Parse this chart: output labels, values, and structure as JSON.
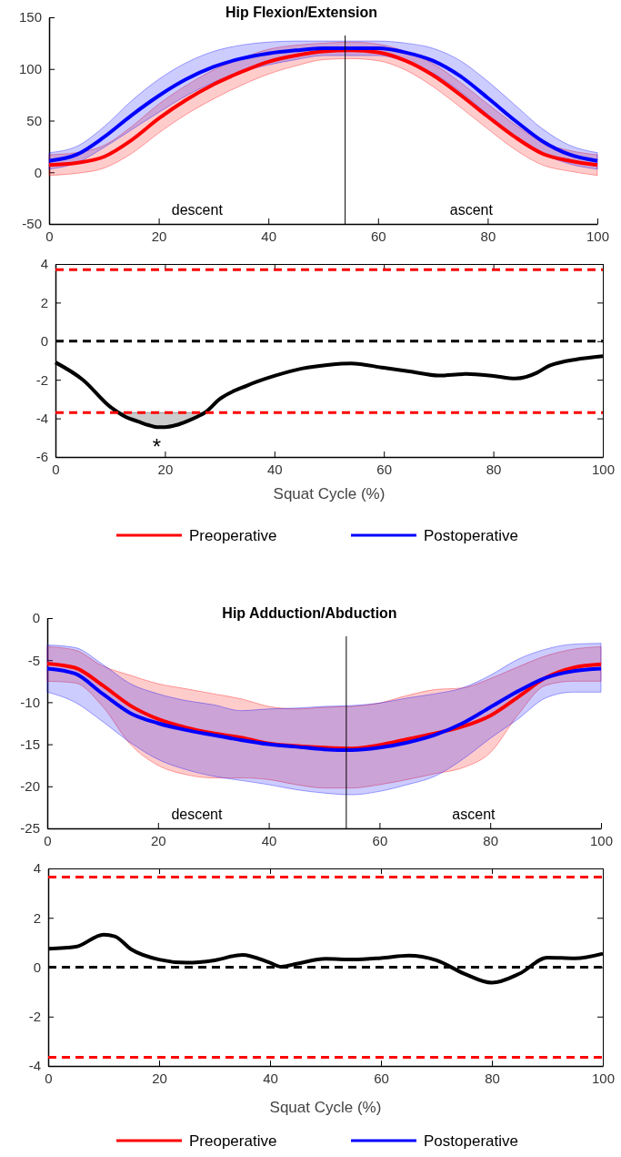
{
  "chart_data": [
    {
      "type": "line",
      "title": "Hip Flexion/Extension",
      "x": [
        0,
        5,
        10,
        15,
        20,
        25,
        30,
        35,
        40,
        45,
        50,
        55,
        60,
        65,
        70,
        75,
        80,
        85,
        90,
        95,
        100
      ],
      "xlim": [
        0,
        100
      ],
      "xticks": [
        0,
        20,
        40,
        60,
        80,
        100
      ],
      "ylim": [
        -50,
        150
      ],
      "yticks": [
        -50,
        0,
        50,
        100,
        150
      ],
      "legend": "bottom",
      "series": [
        {
          "name": "Preoperative",
          "color": "#ff0000",
          "values": [
            7,
            9,
            15,
            31,
            52,
            70,
            85,
            97,
            107,
            113,
            117,
            118,
            116,
            108,
            94,
            75,
            54,
            34,
            18,
            11,
            7
          ],
          "lower": [
            -3,
            -1,
            4,
            18,
            38,
            56,
            71,
            84,
            95,
            103,
            109,
            110,
            108,
            99,
            83,
            63,
            42,
            22,
            7,
            1,
            -3
          ],
          "upper": [
            17,
            19,
            26,
            44,
            66,
            84,
            99,
            110,
            119,
            123,
            125,
            126,
            124,
            117,
            105,
            87,
            66,
            46,
            29,
            21,
            17
          ]
        },
        {
          "name": "Postoperative",
          "color": "#0000ff",
          "values": [
            11,
            17,
            34,
            55,
            74,
            90,
            102,
            110,
            115,
            118,
            120,
            120,
            120,
            116,
            108,
            93,
            72,
            50,
            30,
            17,
            11
          ],
          "lower": [
            3,
            9,
            24,
            41,
            58,
            74,
            87,
            97,
            104,
            109,
            113,
            113,
            113,
            107,
            96,
            78,
            56,
            35,
            18,
            8,
            3
          ],
          "upper": [
            19,
            25,
            44,
            69,
            90,
            106,
            117,
            123,
            126,
            127,
            127,
            127,
            127,
            125,
            120,
            108,
            88,
            65,
            42,
            26,
            19
          ]
        }
      ],
      "ref_lines": [
        {
          "axis": "x",
          "value": 54,
          "color": "#000000"
        }
      ],
      "annotations": [
        "descent",
        "ascent"
      ]
    },
    {
      "type": "line",
      "xlabel": "Squat Cycle (%)",
      "xlim": [
        0,
        100
      ],
      "xticks": [
        0,
        20,
        40,
        60,
        80,
        100
      ],
      "ylim": [
        -6,
        4
      ],
      "yticks": [
        -6,
        -4,
        -2,
        0,
        2,
        4
      ],
      "series": [
        {
          "color": "#000000",
          "x": [
            0,
            5,
            10,
            11.5,
            13,
            15,
            17,
            18.5,
            20,
            22,
            24,
            26,
            27.3,
            30,
            35,
            40,
            45,
            50,
            54,
            60,
            65,
            70,
            75,
            80,
            84,
            88,
            90,
            93,
            95,
            100
          ],
          "values": [
            -1.1,
            -2.0,
            -3.4,
            -3.7,
            -3.95,
            -4.15,
            -4.35,
            -4.45,
            -4.45,
            -4.35,
            -4.15,
            -3.9,
            -3.7,
            -3.0,
            -2.3,
            -1.8,
            -1.42,
            -1.22,
            -1.15,
            -1.38,
            -1.58,
            -1.78,
            -1.7,
            -1.8,
            -1.93,
            -1.63,
            -1.3,
            -1.05,
            -0.95,
            -0.78
          ],
          "lower": [
            null,
            null,
            null,
            -3.7,
            -3.95,
            -4.15,
            -4.35,
            -4.45,
            -4.45,
            -4.35,
            -4.15,
            -3.9,
            -3.7,
            null,
            null,
            null,
            null,
            null,
            null,
            null,
            null,
            null,
            null,
            null,
            null,
            null,
            null,
            null,
            null,
            null
          ],
          "upper": [
            null,
            null,
            null,
            -3.7,
            -3.7,
            -3.7,
            -3.7,
            -3.7,
            -3.7,
            -3.7,
            -3.7,
            -3.7,
            -3.7,
            null,
            null,
            null,
            null,
            null,
            null,
            null,
            null,
            null,
            null,
            null,
            null,
            null,
            null,
            null,
            null,
            null
          ]
        }
      ],
      "ref_lines": [
        {
          "axis": "y",
          "value": 3.7,
          "color": "#ff0000",
          "line_style": "dashed"
        },
        {
          "axis": "y",
          "value": 0,
          "color": "#000000",
          "line_style": "dashed"
        },
        {
          "axis": "y",
          "value": -3.7,
          "color": "#ff0000",
          "line_style": "dashed"
        }
      ],
      "annotations": [
        "*"
      ]
    },
    {
      "type": "line",
      "title": "Hip Adduction/Abduction",
      "x": [
        0,
        5,
        10,
        15,
        20,
        25,
        30,
        35,
        40,
        45,
        50,
        55,
        60,
        65,
        70,
        75,
        80,
        85,
        90,
        95,
        100
      ],
      "xlim": [
        0,
        100
      ],
      "xticks": [
        0,
        20,
        40,
        60,
        80,
        100
      ],
      "ylim": [
        -25,
        0
      ],
      "yticks": [
        -25,
        -20,
        -15,
        -10,
        -5,
        0
      ],
      "legend": "bottom",
      "series": [
        {
          "name": "Preoperative",
          "color": "#ff0000",
          "values": [
            -5.4,
            -5.9,
            -8.0,
            -10.4,
            -12.0,
            -13.0,
            -13.7,
            -14.2,
            -14.9,
            -15.2,
            -15.4,
            -15.5,
            -15.1,
            -14.4,
            -13.7,
            -12.9,
            -11.6,
            -9.4,
            -7.1,
            -5.9,
            -5.5
          ],
          "lower": [
            -7.5,
            -7.7,
            -10.5,
            -15.0,
            -17.5,
            -18.6,
            -19.0,
            -19.0,
            -19.2,
            -19.8,
            -20.2,
            -20.2,
            -19.8,
            -19.2,
            -18.5,
            -17.8,
            -16.0,
            -11.5,
            -8.0,
            -7.5,
            -7.5
          ],
          "upper": [
            -3.4,
            -3.8,
            -5.7,
            -6.8,
            -7.8,
            -8.4,
            -9.0,
            -9.6,
            -10.5,
            -10.8,
            -10.6,
            -10.5,
            -10.1,
            -9.2,
            -8.5,
            -8.3,
            -7.2,
            -5.8,
            -4.5,
            -3.7,
            -3.4
          ]
        },
        {
          "name": "Postoperative",
          "color": "#0000ff",
          "values": [
            -6.0,
            -6.6,
            -9.0,
            -11.3,
            -12.5,
            -13.3,
            -13.9,
            -14.5,
            -15.0,
            -15.3,
            -15.6,
            -15.7,
            -15.4,
            -14.8,
            -13.9,
            -12.5,
            -10.6,
            -8.7,
            -7.1,
            -6.3,
            -6.0
          ],
          "lower": [
            -8.8,
            -10.0,
            -12.3,
            -14.8,
            -16.8,
            -18.0,
            -18.8,
            -19.3,
            -19.8,
            -20.4,
            -20.8,
            -21.0,
            -20.6,
            -19.8,
            -18.8,
            -16.8,
            -14.3,
            -12.0,
            -9.5,
            -8.8,
            -8.8
          ],
          "upper": [
            -3.2,
            -3.5,
            -5.5,
            -7.8,
            -9.0,
            -9.8,
            -10.3,
            -11.0,
            -10.8,
            -10.7,
            -10.5,
            -10.4,
            -10.1,
            -9.5,
            -9.0,
            -8.3,
            -6.8,
            -4.9,
            -3.7,
            -3.1,
            -3.0
          ]
        }
      ],
      "ref_lines": [
        {
          "axis": "x",
          "value": 54,
          "color": "#000000"
        }
      ],
      "annotations": [
        "descent",
        "ascent"
      ]
    },
    {
      "type": "line",
      "xlabel": "Squat Cycle (%)",
      "xlim": [
        0,
        100
      ],
      "xticks": [
        0,
        20,
        40,
        60,
        80,
        100
      ],
      "ylim": [
        -4,
        4
      ],
      "yticks": [
        -4,
        -2,
        0,
        2,
        4
      ],
      "series": [
        {
          "color": "#000000",
          "x": [
            0,
            5,
            10,
            12,
            15,
            20,
            25,
            30,
            35,
            40,
            42,
            45,
            50,
            55,
            60,
            65,
            70,
            75,
            80,
            85,
            90,
            95,
            100
          ],
          "values": [
            0.75,
            0.83,
            1.32,
            1.25,
            0.72,
            0.31,
            0.18,
            0.28,
            0.5,
            0.18,
            0.02,
            0.15,
            0.34,
            0.31,
            0.37,
            0.47,
            0.28,
            -0.26,
            -0.63,
            -0.26,
            0.39,
            0.36,
            0.55
          ]
        }
      ],
      "ref_lines": [
        {
          "axis": "y",
          "value": 3.65,
          "color": "#ff0000",
          "line_style": "dashed"
        },
        {
          "axis": "y",
          "value": 0,
          "color": "#000000",
          "line_style": "dashed"
        },
        {
          "axis": "y",
          "value": -3.65,
          "color": "#ff0000",
          "line_style": "dashed"
        }
      ]
    }
  ]
}
